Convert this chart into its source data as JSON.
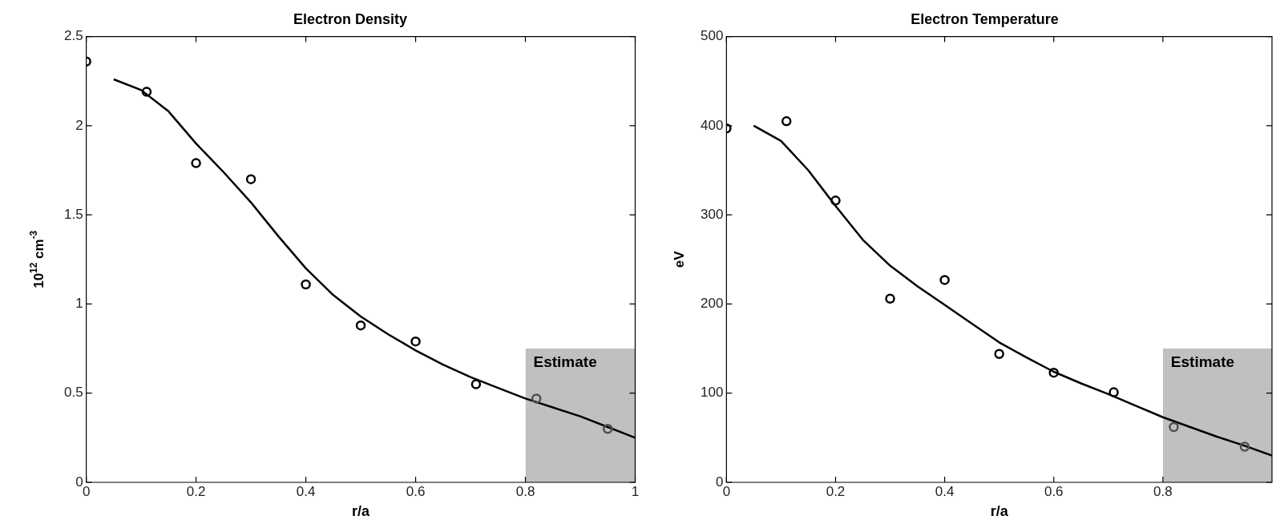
{
  "chart_data": [
    {
      "type": "line",
      "title": "Electron Density",
      "xlabel": "r/a",
      "ylabel": "10$^{12}$ cm$^{-3}$",
      "xlim": [
        0,
        1
      ],
      "xticks": [
        0,
        0.2,
        0.4,
        0.6,
        0.8,
        1
      ],
      "ylim": [
        0,
        2.5
      ],
      "yticks": [
        0,
        0.5,
        1,
        1.5,
        2,
        2.5
      ],
      "grid": false,
      "legend": false,
      "series": [
        {
          "type": "area",
          "name": "Estimate",
          "color": "#c0c0c0",
          "x": [
            0.8,
            1
          ],
          "values": [
            0.75,
            0.75
          ]
        },
        {
          "color": "#000000",
          "x": [
            0.05,
            0.1,
            0.15,
            0.2,
            0.25,
            0.3,
            0.35,
            0.4,
            0.45,
            0.5,
            0.55,
            0.6,
            0.65,
            0.7,
            0.75,
            0.8,
            0.85,
            0.9,
            0.95,
            1
          ],
          "values": [
            2.26,
            2.2,
            2.08,
            1.9,
            1.74,
            1.57,
            1.38,
            1.2,
            1.05,
            0.93,
            0.83,
            0.74,
            0.66,
            0.59,
            0.53,
            0.47,
            0.42,
            0.37,
            0.31,
            0.25
          ]
        },
        {
          "type": "scatter",
          "marker": "circle",
          "colors": [
            "#000000",
            "#000000",
            "#000000",
            "#000000",
            "#000000",
            "#000000",
            "#000000",
            "#000000",
            "#505050",
            "#505050"
          ],
          "x": [
            0,
            0.11,
            0.2,
            0.3,
            0.4,
            0.5,
            0.6,
            0.71,
            0.82,
            0.95
          ],
          "values": [
            2.36,
            2.19,
            1.79,
            1.7,
            1.11,
            0.88,
            0.79,
            0.55,
            0.47,
            0.3
          ]
        }
      ]
    },
    {
      "type": "line",
      "title": "Electron Temperature",
      "xlabel": "r/a",
      "ylabel": "eV",
      "xlim": [
        0,
        1
      ],
      "xticks": [
        0,
        0.2,
        0.4,
        0.6,
        0.8
      ],
      "ylim": [
        0,
        500
      ],
      "yticks": [
        0,
        100,
        200,
        300,
        400,
        500
      ],
      "grid": false,
      "legend": false,
      "series": [
        {
          "type": "area",
          "name": "Estimate",
          "color": "#c0c0c0",
          "x": [
            0.8,
            1
          ],
          "values": [
            150,
            150
          ]
        },
        {
          "color": "#000000",
          "x": [
            0.05,
            0.1,
            0.15,
            0.2,
            0.25,
            0.3,
            0.35,
            0.4,
            0.45,
            0.5,
            0.55,
            0.6,
            0.65,
            0.7,
            0.75,
            0.8,
            0.85,
            0.9,
            0.95,
            1
          ],
          "values": [
            400,
            383,
            350,
            310,
            272,
            243,
            220,
            199,
            178,
            157,
            140,
            124,
            111,
            99,
            86,
            73,
            62,
            51,
            41,
            30
          ]
        },
        {
          "type": "scatter",
          "marker": "circle",
          "colors": [
            "#000000",
            "#000000",
            "#000000",
            "#000000",
            "#000000",
            "#000000",
            "#000000",
            "#000000",
            "#505050",
            "#505050"
          ],
          "x": [
            0,
            0.11,
            0.2,
            0.3,
            0.4,
            0.5,
            0.6,
            0.71,
            0.82,
            0.95
          ],
          "values": [
            397,
            405,
            316,
            206,
            227,
            144,
            123,
            101,
            62,
            40
          ]
        }
      ]
    }
  ]
}
